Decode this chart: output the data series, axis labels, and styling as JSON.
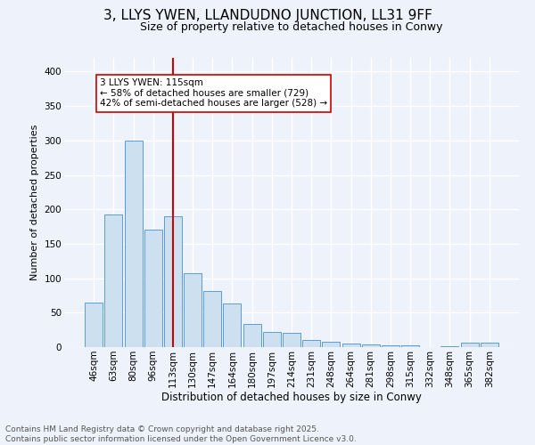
{
  "title1": "3, LLYS YWEN, LLANDUDNO JUNCTION, LL31 9FF",
  "title2": "Size of property relative to detached houses in Conwy",
  "xlabel": "Distribution of detached houses by size in Conwy",
  "ylabel": "Number of detached properties",
  "bar_color": "#cce0f0",
  "bar_edge_color": "#5b9bd5",
  "categories": [
    "46sqm",
    "63sqm",
    "80sqm",
    "96sqm",
    "113sqm",
    "130sqm",
    "147sqm",
    "164sqm",
    "180sqm",
    "197sqm",
    "214sqm",
    "231sqm",
    "248sqm",
    "264sqm",
    "281sqm",
    "298sqm",
    "315sqm",
    "332sqm",
    "348sqm",
    "365sqm",
    "382sqm"
  ],
  "values": [
    65,
    193,
    300,
    170,
    190,
    107,
    82,
    63,
    33,
    22,
    21,
    10,
    8,
    5,
    4,
    2,
    3,
    0,
    1,
    7,
    6
  ],
  "vline_x_index": 4,
  "vline_color": "#cc0000",
  "annotation_text": "3 LLYS YWEN: 115sqm\n← 58% of detached houses are smaller (729)\n42% of semi-detached houses are larger (528) →",
  "annotation_box_color": "white",
  "annotation_box_edge": "#cc0000",
  "ylim": [
    0,
    420
  ],
  "yticks": [
    0,
    50,
    100,
    150,
    200,
    250,
    300,
    350,
    400
  ],
  "footer": "Contains HM Land Registry data © Crown copyright and database right 2025.\nContains public sector information licensed under the Open Government Licence v3.0.",
  "background_color": "#eef2fb",
  "grid_color": "#ffffff",
  "title1_fontsize": 11,
  "title2_fontsize": 9,
  "annotation_fontsize": 7.5,
  "footer_fontsize": 6.5,
  "ylabel_fontsize": 8,
  "xlabel_fontsize": 8.5,
  "tick_fontsize": 7.5
}
